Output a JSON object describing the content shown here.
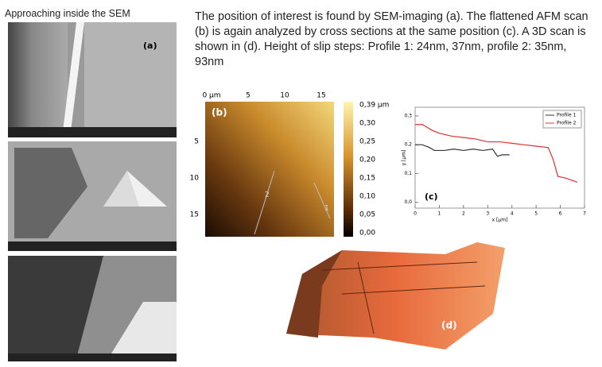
{
  "left_caption": "Approaching inside the SEM",
  "sem_label": "(a)",
  "description": "The position of interest is found by SEM-imaging (a). The flattened AFM scan (b) is again analyzed by cross sections at the same position (c). A 3D scan is shown in (d). Height of slip steps: Profile 1: 24nm, 37nm, profile 2: 35nm, 93nm",
  "afm": {
    "label": "(b)",
    "top_ticks": [
      "0 µm",
      "5",
      "10",
      "15"
    ],
    "left_ticks": [
      "5",
      "10",
      "15"
    ],
    "profile_marks": [
      "2",
      "1"
    ],
    "colorbar_ticks": [
      "0,39 µm",
      "0,30",
      "0,25",
      "0,20",
      "0,15",
      "0,10",
      "0,05",
      "0,00"
    ]
  },
  "profile_chart": {
    "type": "line",
    "label": "(c)",
    "x_label": "x [µm]",
    "y_label": "y [µm]",
    "xlim": [
      0,
      7
    ],
    "xticks": [
      0,
      1,
      2,
      3,
      4,
      5,
      6,
      7
    ],
    "ylim": [
      -0.02,
      0.33
    ],
    "yticks": [
      {
        "value": 0,
        "label": "0,0"
      },
      {
        "value": 0.1,
        "label": "0,1"
      },
      {
        "value": 0.2,
        "label": "0,2"
      },
      {
        "value": 0.3,
        "label": "0,3"
      }
    ],
    "series": [
      {
        "name": "Profile 1",
        "color": "#333333",
        "x": [
          0,
          0.3,
          0.6,
          0.8,
          1.2,
          1.6,
          2,
          2.4,
          2.8,
          3.2,
          3.4,
          3.6,
          3.9
        ],
        "values": [
          0.2,
          0.2,
          0.19,
          0.18,
          0.18,
          0.185,
          0.18,
          0.185,
          0.18,
          0.185,
          0.16,
          0.165,
          0.165
        ]
      },
      {
        "name": "Profile 2",
        "color": "#e03030",
        "x": [
          0,
          0.3,
          0.5,
          0.7,
          1,
          1.5,
          2,
          2.5,
          3,
          3.5,
          4,
          4.5,
          5,
          5.5,
          5.7,
          5.9,
          6.2,
          6.7
        ],
        "values": [
          0.27,
          0.27,
          0.26,
          0.25,
          0.24,
          0.23,
          0.225,
          0.22,
          0.21,
          0.21,
          0.205,
          0.2,
          0.195,
          0.19,
          0.15,
          0.09,
          0.085,
          0.07
        ]
      }
    ]
  },
  "scan3d_label": "(d)"
}
